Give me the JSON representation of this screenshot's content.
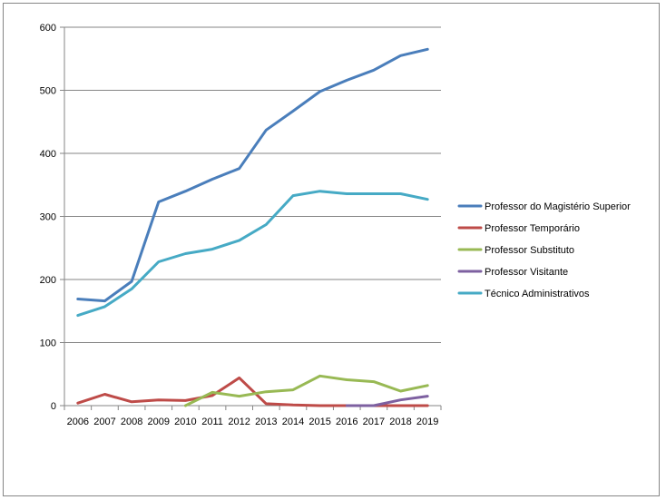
{
  "chart_data": {
    "type": "line",
    "title": "",
    "xlabel": "",
    "ylabel": "",
    "ylim": [
      0,
      600
    ],
    "y_ticks": [
      0,
      100,
      200,
      300,
      400,
      500,
      600
    ],
    "categories": [
      "2006",
      "2007",
      "2008",
      "2009",
      "2010",
      "2011",
      "2012",
      "2013",
      "2014",
      "2015",
      "2016",
      "2017",
      "2018",
      "2019"
    ],
    "grid": "horizontal",
    "legend_position": "right",
    "series": [
      {
        "name": "Professor do Magistério  Superior",
        "color": "#4A7EBB",
        "values": [
          169,
          166,
          197,
          323,
          340,
          359,
          376,
          437,
          467,
          498,
          516,
          532,
          555,
          565
        ]
      },
      {
        "name": "Professor Temporário",
        "color": "#BE4B48",
        "values": [
          4,
          18,
          6,
          9,
          8,
          16,
          44,
          3,
          1,
          0,
          0,
          0,
          0,
          0
        ]
      },
      {
        "name": "Professor Substituto",
        "color": "#98B954",
        "values": [
          null,
          null,
          null,
          null,
          0,
          21,
          15,
          22,
          25,
          47,
          41,
          38,
          23,
          32
        ]
      },
      {
        "name": "Professor Visitante",
        "color": "#7D60A0",
        "values": [
          null,
          null,
          null,
          null,
          null,
          null,
          null,
          null,
          null,
          null,
          0,
          0,
          9,
          15
        ]
      },
      {
        "name": "Técnico Administrativos",
        "color": "#46AAC5",
        "values": [
          143,
          157,
          185,
          228,
          241,
          248,
          262,
          287,
          333,
          340,
          336,
          336,
          336,
          327
        ]
      }
    ]
  }
}
